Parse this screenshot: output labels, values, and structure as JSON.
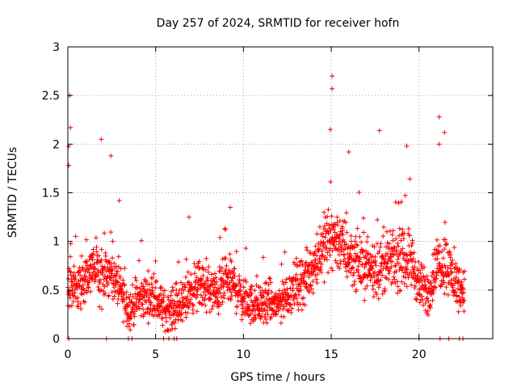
{
  "chart_data": {
    "type": "scatter",
    "title": "Day 257 of 2024, SRMTID for receiver hofn",
    "xlabel": "GPS time / hours",
    "ylabel": "SRMTID / TECUs",
    "xlim": [
      0,
      24.2
    ],
    "ylim": [
      0,
      3
    ],
    "x_ticks": [
      0,
      5,
      10,
      15,
      20
    ],
    "x_tick_labels": [
      "0",
      "5",
      "10",
      "15",
      "20"
    ],
    "y_ticks": [
      0,
      0.5,
      1,
      1.5,
      2,
      2.5,
      3
    ],
    "y_tick_labels": [
      "0",
      "0.5",
      "1",
      "1.5",
      "2",
      "2.5",
      "3"
    ],
    "grid": true,
    "marker": "plus",
    "series_color": "#ff0000",
    "envelope": {
      "description": "approximate typical level (hours, TECU) of the dense point cloud",
      "x": [
        0,
        0.5,
        1,
        1.5,
        2,
        2.5,
        3,
        3.5,
        4,
        4.5,
        5,
        5.5,
        6,
        6.5,
        7,
        7.5,
        8,
        8.5,
        9,
        9.5,
        10,
        10.5,
        11,
        11.5,
        12,
        12.5,
        13,
        13.5,
        14,
        14.5,
        15,
        15.5,
        16,
        16.5,
        17,
        17.5,
        18,
        18.5,
        19,
        19.5,
        20,
        20.5,
        21,
        21.5,
        22,
        22.5
      ],
      "y": [
        0.6,
        0.55,
        0.6,
        0.75,
        0.6,
        0.65,
        0.5,
        0.3,
        0.4,
        0.45,
        0.4,
        0.3,
        0.3,
        0.35,
        0.5,
        0.55,
        0.5,
        0.45,
        0.6,
        0.55,
        0.4,
        0.35,
        0.35,
        0.35,
        0.35,
        0.45,
        0.55,
        0.6,
        0.75,
        0.95,
        1.05,
        1.0,
        0.85,
        0.8,
        0.75,
        0.7,
        0.75,
        0.8,
        0.8,
        0.85,
        0.55,
        0.45,
        0.75,
        0.8,
        0.6,
        0.5
      ]
    },
    "notable_points": [
      {
        "x": 0.1,
        "y": 2.5
      },
      {
        "x": 0.15,
        "y": 2.17
      },
      {
        "x": 0.05,
        "y": 1.98
      },
      {
        "x": 0.05,
        "y": 1.78
      },
      {
        "x": 1.9,
        "y": 2.05
      },
      {
        "x": 2.45,
        "y": 1.88
      },
      {
        "x": 15.05,
        "y": 2.7
      },
      {
        "x": 15.05,
        "y": 2.57
      },
      {
        "x": 14.95,
        "y": 2.15
      },
      {
        "x": 17.75,
        "y": 2.14
      },
      {
        "x": 21.15,
        "y": 2.28
      },
      {
        "x": 21.45,
        "y": 2.12
      },
      {
        "x": 21.15,
        "y": 2.0
      },
      {
        "x": 19.3,
        "y": 1.98
      },
      {
        "x": 16.0,
        "y": 1.92
      },
      {
        "x": 6.9,
        "y": 1.25
      },
      {
        "x": 9.25,
        "y": 1.35
      }
    ],
    "zero_points_x": [
      0.05,
      2.2,
      3.45,
      3.65,
      5.45,
      5.75,
      6.05,
      6.2,
      20.0,
      21.2,
      21.7,
      22.3,
      22.5
    ]
  }
}
